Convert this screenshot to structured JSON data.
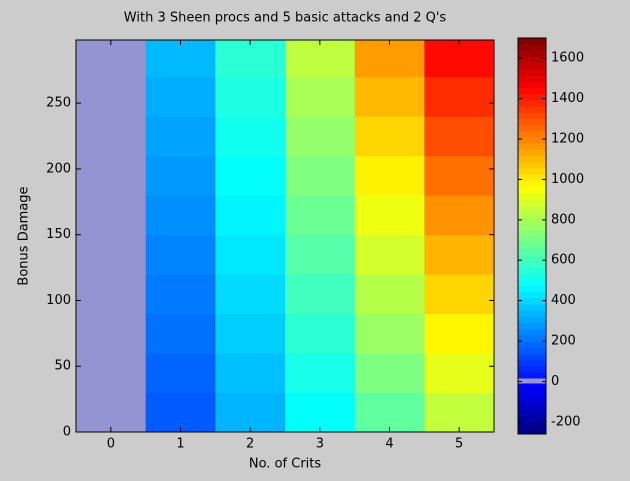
{
  "chart_data": {
    "type": "heatmap",
    "title": "With 3 Sheen procs and 5 basic attacks and 2 Q's",
    "x_label": "No. of Crits",
    "y_label": "Bonus Damage",
    "categories": [
      "0",
      "1",
      "2",
      "3",
      "4",
      "5"
    ],
    "y_edges": [
      0,
      30,
      60,
      90,
      120,
      150,
      180,
      210,
      240,
      270,
      300
    ],
    "z": [
      [
        0,
        160,
        330,
        480,
        660,
        850
      ],
      [
        0,
        180,
        355,
        520,
        715,
        915
      ],
      [
        0,
        200,
        380,
        560,
        770,
        980
      ],
      [
        0,
        220,
        405,
        600,
        825,
        1045
      ],
      [
        0,
        240,
        430,
        640,
        880,
        1110
      ],
      [
        0,
        260,
        455,
        680,
        935,
        1175
      ],
      [
        0,
        280,
        480,
        720,
        990,
        1240
      ],
      [
        0,
        300,
        505,
        760,
        1045,
        1305
      ],
      [
        0,
        320,
        530,
        800,
        1100,
        1370
      ],
      [
        0,
        340,
        555,
        840,
        1155,
        1435
      ]
    ],
    "ylim": [
      0,
      298
    ],
    "yticks": [
      0,
      50,
      100,
      150,
      200,
      250
    ],
    "clim": [
      -260,
      1700
    ],
    "cticks": [
      -200,
      0,
      200,
      400,
      600,
      800,
      1000,
      1200,
      1400,
      1600
    ],
    "colormap": "jet",
    "zero_color": "#9494d2"
  }
}
